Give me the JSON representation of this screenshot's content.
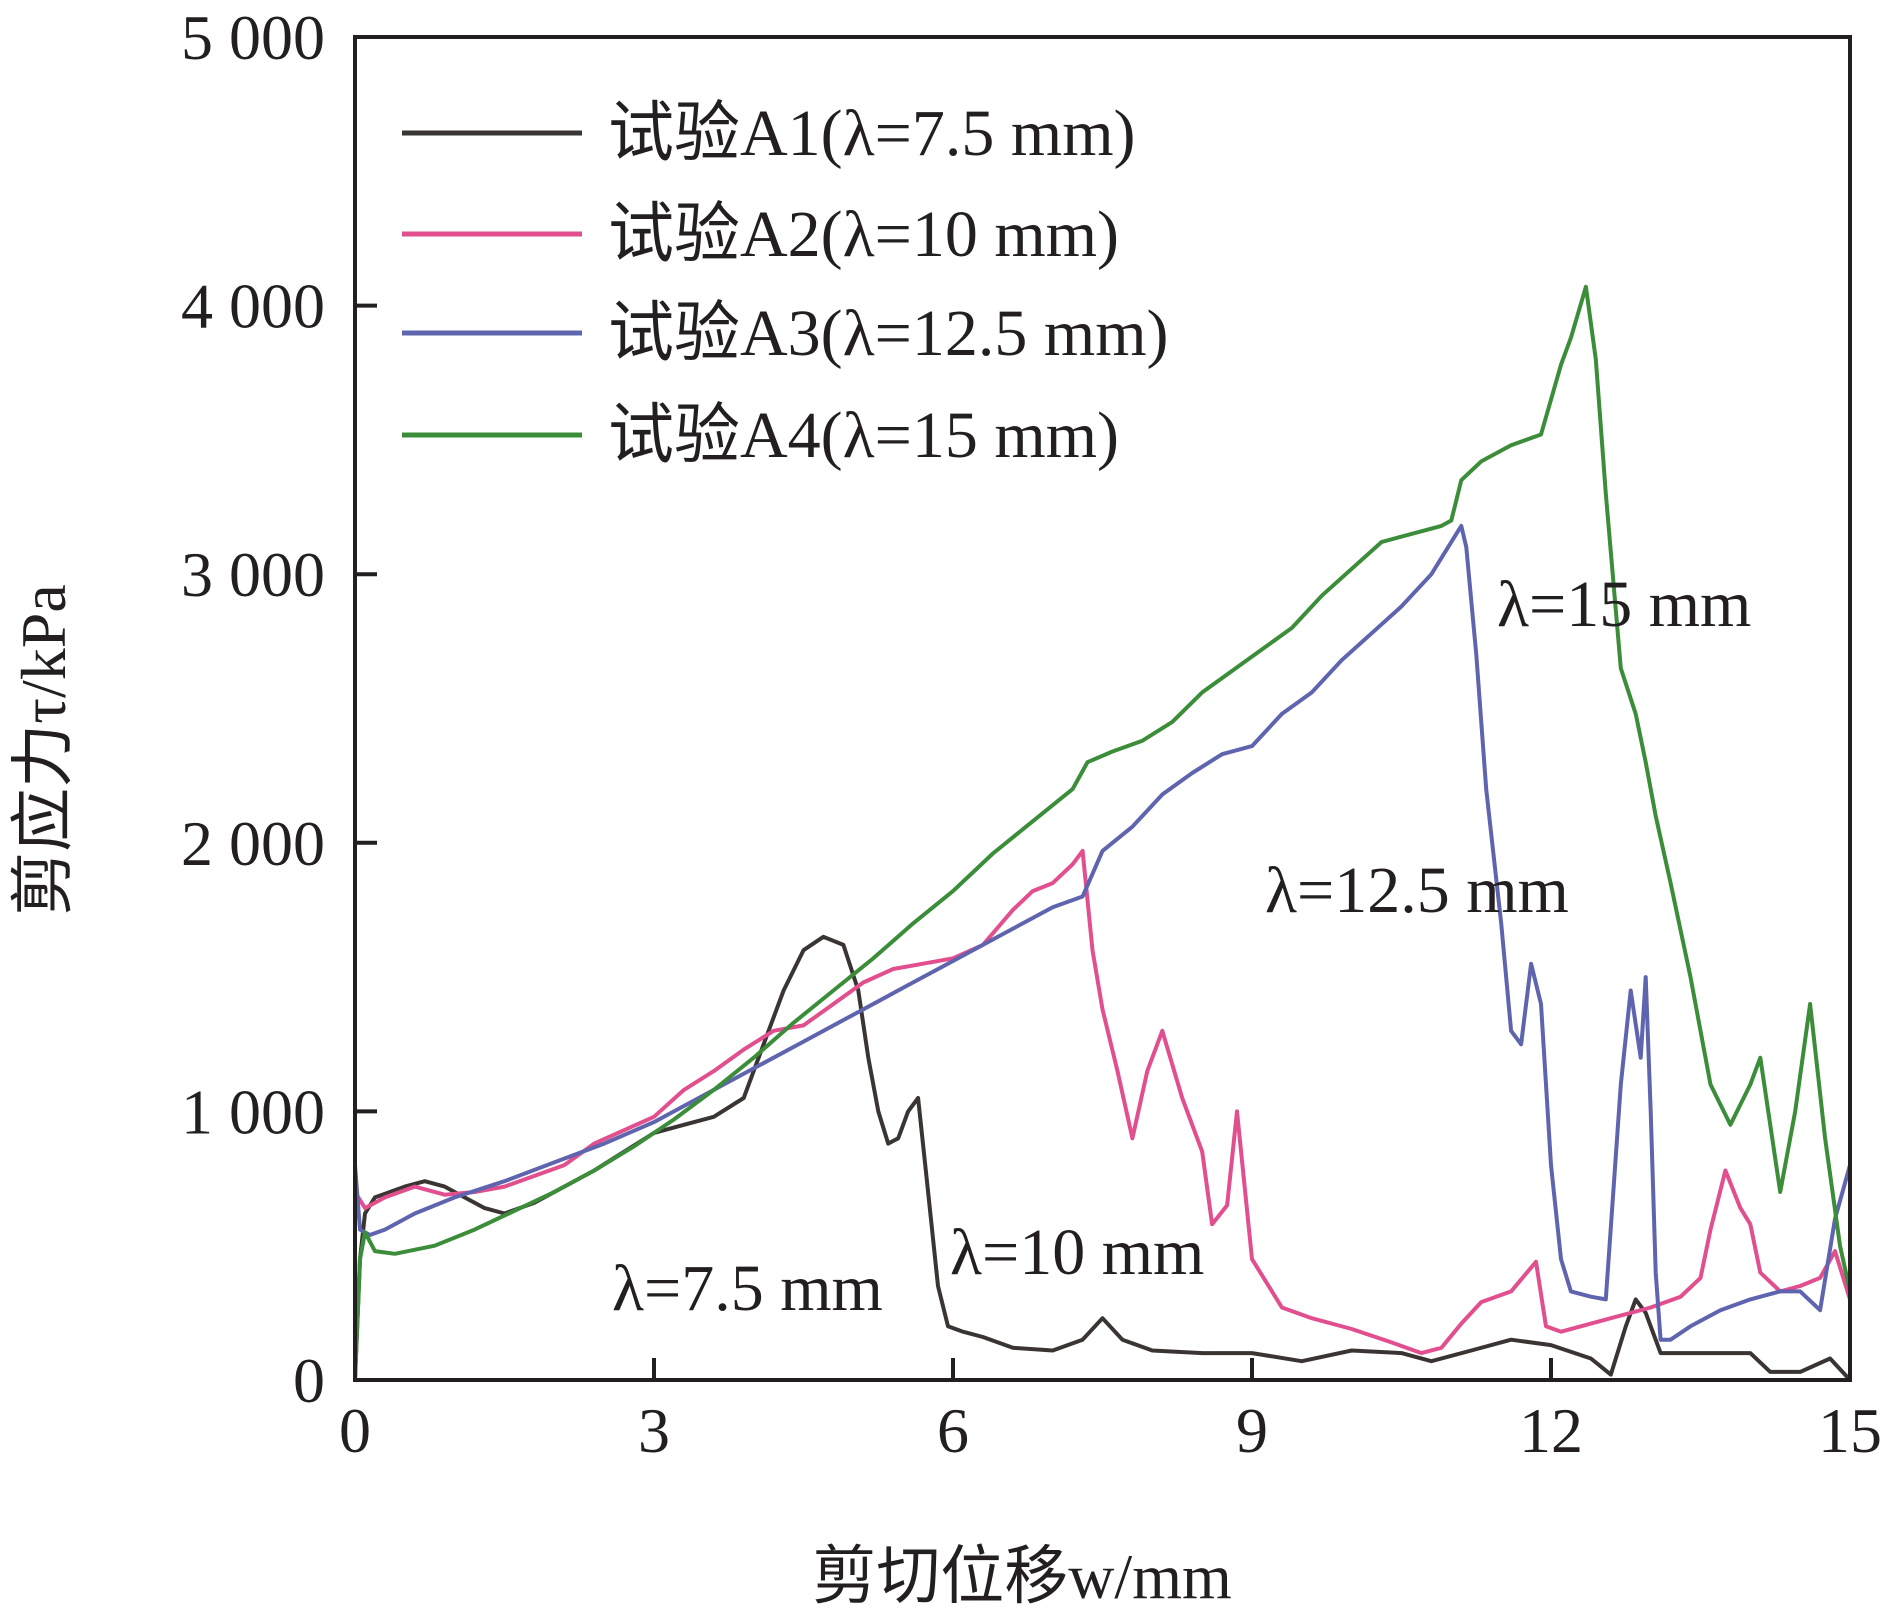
{
  "chart_data": {
    "type": "line",
    "xlabel": "剪切位移w/mm",
    "ylabel": "剪应力τ/kPa",
    "xlim": [
      0,
      15
    ],
    "ylim": [
      0,
      5000
    ],
    "x_ticks": [
      0,
      3,
      6,
      9,
      12,
      15
    ],
    "x_tick_labels": [
      "0",
      "3",
      "6",
      "9",
      "12",
      "15"
    ],
    "y_ticks": [
      0,
      1000,
      2000,
      3000,
      4000,
      5000
    ],
    "y_tick_labels": [
      "0",
      "1 000",
      "2 000",
      "3 000",
      "4 000",
      "5 000"
    ],
    "grid": false,
    "legend_position": "top-left",
    "series": [
      {
        "name": "试验A1(λ=7.5 mm)",
        "color": "#3a3533",
        "x": [
          0,
          0.05,
          0.1,
          0.2,
          0.35,
          0.5,
          0.7,
          0.9,
          1.1,
          1.3,
          1.5,
          1.8,
          2.1,
          2.4,
          2.7,
          3.0,
          3.3,
          3.6,
          3.9,
          4.1,
          4.3,
          4.5,
          4.7,
          4.9,
          5.05,
          5.15,
          5.25,
          5.35,
          5.45,
          5.55,
          5.65,
          5.75,
          5.85,
          5.95,
          6.1,
          6.3,
          6.6,
          7.0,
          7.3,
          7.5,
          7.7,
          8.0,
          8.5,
          9.0,
          9.5,
          10.0,
          10.5,
          10.8,
          11.2,
          11.6,
          12.0,
          12.4,
          12.6,
          12.75,
          12.85,
          12.95,
          13.1,
          13.5,
          14.0,
          14.2,
          14.5,
          14.8,
          15.0
        ],
        "y": [
          0,
          450,
          620,
          680,
          700,
          720,
          740,
          720,
          680,
          640,
          620,
          660,
          720,
          780,
          850,
          920,
          950,
          980,
          1050,
          1250,
          1450,
          1600,
          1650,
          1620,
          1450,
          1200,
          1000,
          880,
          900,
          1000,
          1050,
          700,
          350,
          200,
          180,
          160,
          120,
          110,
          150,
          230,
          150,
          110,
          100,
          100,
          70,
          110,
          100,
          70,
          110,
          150,
          130,
          80,
          20,
          200,
          300,
          250,
          100,
          100,
          100,
          30,
          30,
          80,
          0
        ]
      },
      {
        "name": "试验A2(λ=10 mm)",
        "color": "#e24f8e",
        "x": [
          0,
          0.1,
          0.3,
          0.6,
          0.9,
          1.2,
          1.5,
          1.8,
          2.1,
          2.4,
          2.7,
          3.0,
          3.3,
          3.6,
          3.9,
          4.2,
          4.5,
          4.8,
          5.1,
          5.4,
          5.7,
          6.0,
          6.3,
          6.6,
          6.8,
          7.0,
          7.2,
          7.3,
          7.4,
          7.5,
          7.65,
          7.8,
          7.95,
          8.1,
          8.3,
          8.5,
          8.6,
          8.75,
          8.85,
          9.0,
          9.3,
          9.6,
          10.0,
          10.4,
          10.7,
          10.9,
          11.1,
          11.3,
          11.6,
          11.85,
          11.95,
          12.1,
          12.3,
          12.6,
          13.0,
          13.3,
          13.5,
          13.6,
          13.75,
          13.9,
          14.0,
          14.1,
          14.3,
          14.5,
          14.7,
          14.85,
          15.0
        ],
        "y": [
          700,
          640,
          680,
          720,
          690,
          700,
          720,
          760,
          800,
          880,
          930,
          980,
          1080,
          1150,
          1230,
          1300,
          1320,
          1400,
          1480,
          1530,
          1550,
          1570,
          1620,
          1750,
          1820,
          1850,
          1920,
          1970,
          1600,
          1380,
          1150,
          900,
          1150,
          1300,
          1050,
          850,
          580,
          650,
          1000,
          450,
          270,
          230,
          190,
          140,
          100,
          120,
          210,
          290,
          330,
          440,
          200,
          180,
          200,
          230,
          270,
          310,
          380,
          560,
          780,
          640,
          580,
          400,
          330,
          350,
          380,
          480,
          300
        ]
      },
      {
        "name": "试验A3(λ=12.5 mm)",
        "color": "#5e64ae",
        "x": [
          0,
          0.05,
          0.15,
          0.3,
          0.6,
          1.0,
          1.5,
          2.0,
          2.5,
          3.0,
          3.5,
          4.0,
          4.5,
          5.0,
          5.5,
          6.0,
          6.5,
          7.0,
          7.3,
          7.5,
          7.8,
          8.1,
          8.4,
          8.7,
          9.0,
          9.3,
          9.6,
          9.9,
          10.2,
          10.5,
          10.8,
          11.0,
          11.1,
          11.15,
          11.25,
          11.35,
          11.5,
          11.6,
          11.7,
          11.8,
          11.9,
          12.0,
          12.1,
          12.2,
          12.4,
          12.55,
          12.7,
          12.8,
          12.9,
          12.95,
          13.0,
          13.05,
          13.1,
          13.2,
          13.4,
          13.7,
          14.0,
          14.3,
          14.5,
          14.7,
          14.85,
          15.0
        ],
        "y": [
          800,
          560,
          540,
          560,
          620,
          680,
          740,
          810,
          880,
          960,
          1060,
          1160,
          1260,
          1360,
          1460,
          1560,
          1660,
          1760,
          1800,
          1970,
          2060,
          2180,
          2260,
          2330,
          2360,
          2480,
          2560,
          2680,
          2780,
          2880,
          3000,
          3120,
          3180,
          3100,
          2700,
          2200,
          1700,
          1300,
          1250,
          1550,
          1400,
          800,
          450,
          330,
          310,
          300,
          1100,
          1450,
          1200,
          1500,
          1000,
          400,
          150,
          150,
          200,
          260,
          300,
          330,
          330,
          260,
          600,
          800
        ]
      },
      {
        "name": "试验A4(λ=15 mm)",
        "color": "#3c8d3a",
        "x": [
          0,
          0.05,
          0.1,
          0.2,
          0.4,
          0.8,
          1.2,
          1.6,
          2.0,
          2.4,
          2.8,
          3.2,
          3.6,
          4.0,
          4.4,
          4.8,
          5.2,
          5.6,
          6.0,
          6.4,
          6.8,
          7.2,
          7.35,
          7.6,
          7.9,
          8.2,
          8.5,
          8.8,
          9.1,
          9.4,
          9.7,
          10.0,
          10.3,
          10.6,
          10.9,
          11.0,
          11.1,
          11.3,
          11.6,
          11.9,
          12.1,
          12.2,
          12.35,
          12.45,
          12.55,
          12.7,
          12.85,
          12.95,
          13.05,
          13.2,
          13.4,
          13.6,
          13.8,
          14.0,
          14.1,
          14.3,
          14.45,
          14.6,
          14.75,
          14.9,
          15.0
        ],
        "y": [
          0,
          450,
          550,
          480,
          470,
          500,
          560,
          630,
          700,
          780,
          870,
          970,
          1080,
          1200,
          1330,
          1450,
          1570,
          1700,
          1820,
          1960,
          2080,
          2200,
          2300,
          2340,
          2380,
          2450,
          2560,
          2640,
          2720,
          2800,
          2920,
          3020,
          3120,
          3150,
          3180,
          3200,
          3350,
          3420,
          3480,
          3520,
          3780,
          3880,
          4070,
          3800,
          3300,
          2650,
          2480,
          2300,
          2100,
          1850,
          1500,
          1100,
          950,
          1100,
          1200,
          700,
          1000,
          1400,
          900,
          500,
          330
        ]
      }
    ],
    "annotations": [
      {
        "text": "λ=7.5 mm",
        "x": 4.5,
        "y": 300
      },
      {
        "text": "λ=10 mm",
        "x": 7.4,
        "y": 450
      },
      {
        "text": "λ=12.5 mm",
        "x": 10.5,
        "y": 1800
      },
      {
        "text": "λ=15 mm",
        "x": 12.5,
        "y": 2850
      }
    ]
  }
}
